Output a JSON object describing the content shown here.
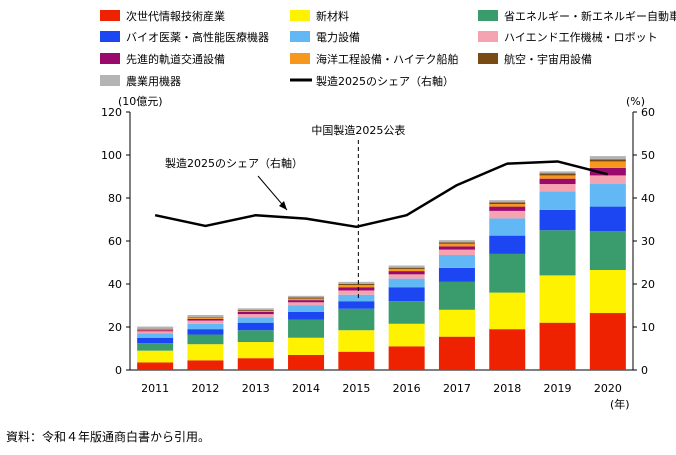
{
  "chart_data": {
    "type": "bar",
    "stacked": true,
    "categories": [
      "2011",
      "2012",
      "2013",
      "2014",
      "2015",
      "2016",
      "2017",
      "2018",
      "2019",
      "2020"
    ],
    "x_unit": "(年)",
    "y_left": {
      "unit": "(10億元)",
      "ylim": [
        0,
        120
      ],
      "ticks": [
        0,
        20,
        40,
        60,
        80,
        100,
        120
      ]
    },
    "y_right": {
      "unit": "(%)",
      "ylim": [
        0,
        60
      ],
      "ticks": [
        0,
        10,
        20,
        30,
        40,
        50,
        60
      ]
    },
    "grid": false,
    "legend_position": "top",
    "series": [
      {
        "name": "次世代情報技術産業",
        "color": "#ee2200",
        "values": [
          3.5,
          4.5,
          5.5,
          7,
          8.5,
          11,
          15.5,
          19,
          22,
          26.5
        ]
      },
      {
        "name": "新材料",
        "color": "#fff200",
        "values": [
          5.5,
          7.5,
          7.5,
          8,
          10,
          10.5,
          12.5,
          17,
          22,
          20
        ]
      },
      {
        "name": "省エネルギー・新エネルギー自動車",
        "color": "#3a9c6c",
        "values": [
          3.5,
          4.5,
          5.5,
          8.5,
          10,
          10.5,
          13,
          18,
          21,
          18
        ]
      },
      {
        "name": "バイオ医薬・高性能医療機器",
        "color": "#1b46f2",
        "values": [
          2.5,
          2.5,
          3.5,
          3.5,
          3.5,
          6.5,
          6.5,
          8.5,
          9.5,
          11.5
        ]
      },
      {
        "name": "電力設備",
        "color": "#61b8f5",
        "values": [
          2,
          2.5,
          2.5,
          3,
          3,
          4,
          6,
          8,
          8.5,
          10.5
        ]
      },
      {
        "name": "ハイエンド工作機械・ロボット",
        "color": "#f5a3b0",
        "values": [
          1,
          1.5,
          1.5,
          1.5,
          2,
          2,
          2.5,
          3.5,
          3.5,
          4
        ]
      },
      {
        "name": "先進的軌道交通設備",
        "color": "#9a0a6c",
        "values": [
          0.5,
          0.8,
          1,
          1,
          1.5,
          1.5,
          1.5,
          2,
          2.5,
          3.5
        ]
      },
      {
        "name": "海洋工程設備・ハイテク船舶",
        "color": "#f7971d",
        "values": [
          0.4,
          0.5,
          0.5,
          0.7,
          1,
          1,
          1.2,
          1.2,
          1.5,
          3
        ]
      },
      {
        "name": "航空・宇宙用設備",
        "color": "#7a4a14",
        "values": [
          0.3,
          0.3,
          0.4,
          0.5,
          0.5,
          0.6,
          0.7,
          0.8,
          0.9,
          1
        ]
      },
      {
        "name": "農業用機器",
        "color": "#b4b4b4",
        "values": [
          1,
          1,
          0.8,
          0.8,
          1,
          1,
          1,
          1,
          1,
          1.5
        ]
      }
    ],
    "line": {
      "name": "製造2025のシェア（右軸）",
      "axis": "right",
      "color": "#000000",
      "values": [
        36,
        33.5,
        36,
        35.2,
        33.3,
        36,
        43,
        48,
        48.5,
        45.5
      ]
    },
    "annotations": [
      {
        "text": "中国製造2025公表",
        "marker": "dashed-vertical-line",
        "x": "2015"
      },
      {
        "text": "製造2025のシェア（右軸）",
        "marker": "arrow-to-line"
      }
    ]
  },
  "source_note": "資料：令和４年版通商白書から引用。"
}
